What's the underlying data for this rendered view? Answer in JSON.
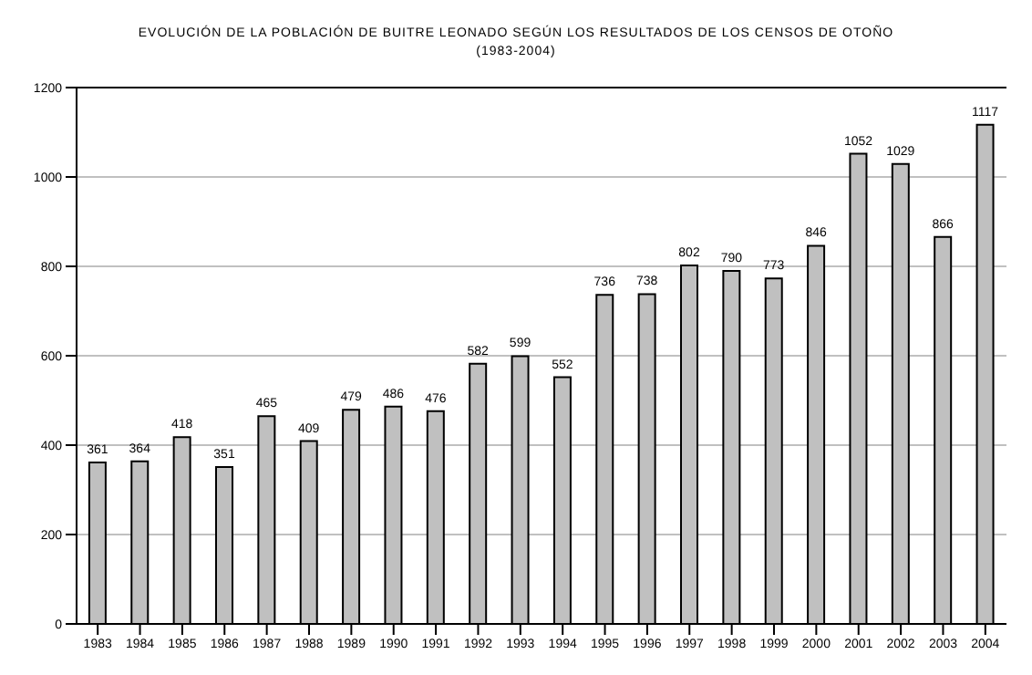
{
  "chart_data": {
    "type": "bar",
    "title": "EVOLUCIÓN DE LA POBLACIÓN DE BUITRE LEONADO SEGÚN LOS RESULTADOS DE LOS CENSOS DE OTOÑO",
    "subtitle": "(1983-2004)",
    "categories": [
      "1983",
      "1984",
      "1985",
      "1986",
      "1987",
      "1988",
      "1989",
      "1990",
      "1991",
      "1992",
      "1993",
      "1994",
      "1995",
      "1996",
      "1997",
      "1998",
      "1999",
      "2000",
      "2001",
      "2002",
      "2003",
      "2004"
    ],
    "values": [
      361,
      364,
      418,
      351,
      465,
      409,
      479,
      486,
      476,
      582,
      599,
      552,
      736,
      738,
      802,
      790,
      773,
      846,
      1052,
      1029,
      866,
      1117
    ],
    "color": "#c0c0c0",
    "ylim": [
      0,
      1200
    ],
    "yticks": [
      0,
      200,
      400,
      600,
      800,
      1000,
      1200
    ],
    "grid": "y",
    "data_labels": true
  }
}
